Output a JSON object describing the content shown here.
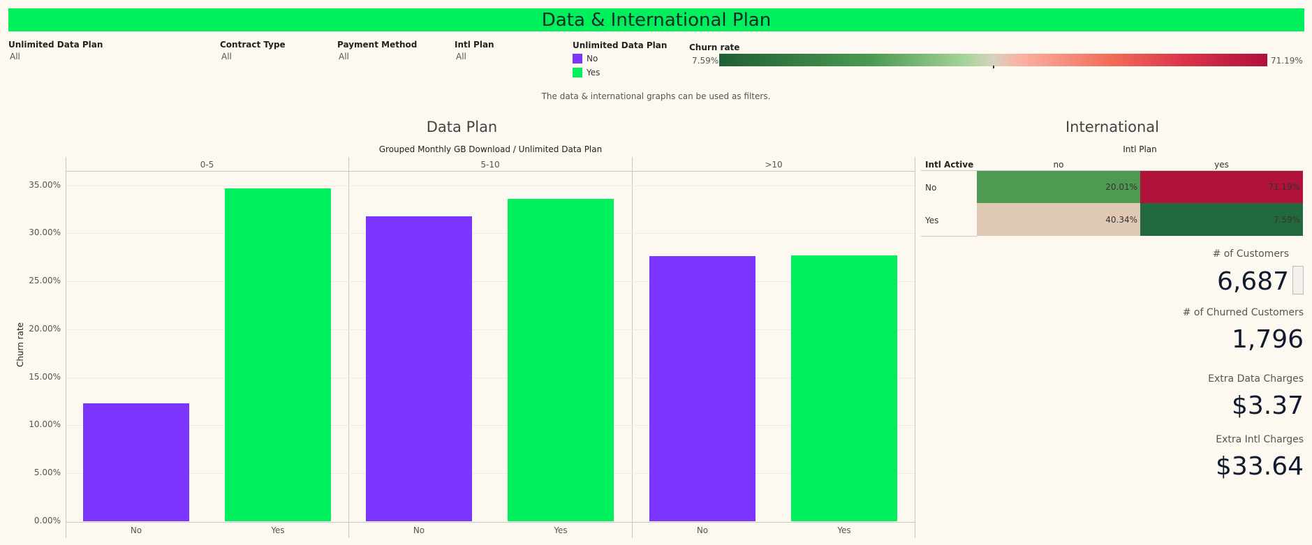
{
  "title": "Data & International Plan",
  "filters": [
    {
      "label": "Unlimited Data Plan",
      "value": "All"
    },
    {
      "label": "Contract Type",
      "value": "All"
    },
    {
      "label": "Payment Method",
      "value": "All"
    },
    {
      "label": "Intl Plan",
      "value": "All"
    }
  ],
  "legend": {
    "title": "Unlimited Data Plan",
    "items": [
      {
        "label": "No",
        "color": "#7b35ff"
      },
      {
        "label": "Yes",
        "color": "#00ef5c"
      }
    ]
  },
  "churn_scale": {
    "title": "Churn rate",
    "min_label": "7.59%",
    "max_label": "71.19%"
  },
  "note": "The data & international graphs can be used as filters.",
  "data_plan": {
    "title": "Data Plan",
    "header": "Grouped Monthly GB Download  /  Unlimited Data Plan",
    "ylabel": "Churn rate",
    "groups": [
      "0-5",
      "5-10",
      ">10"
    ],
    "yticks": [
      "35.00%",
      "30.00%",
      "25.00%",
      "20.00%",
      "15.00%",
      "10.00%",
      "5.00%",
      "0.00%"
    ]
  },
  "chart_data": {
    "type": "bar",
    "title": "Data Plan",
    "xlabel": "Grouped Monthly GB Download / Unlimited Data Plan",
    "ylabel": "Churn rate",
    "categories": [
      "0-5",
      "5-10",
      ">10"
    ],
    "series": [
      {
        "name": "No",
        "values": [
          12.3,
          31.8,
          27.6
        ]
      },
      {
        "name": "Yes",
        "values": [
          34.7,
          33.6,
          27.7
        ]
      }
    ],
    "ylim": [
      0,
      36.5
    ]
  },
  "international": {
    "title": "International",
    "header": "Intl Plan",
    "row_header": "Intl Active",
    "columns": [
      "no",
      "yes"
    ],
    "rows": [
      {
        "label": "No",
        "cells": [
          {
            "value": "20.01%",
            "color": "#4f9a52"
          },
          {
            "value": "71.19%",
            "color": "#b0123a"
          }
        ]
      },
      {
        "label": "Yes",
        "cells": [
          {
            "value": "40.34%",
            "color": "#dfc9b4"
          },
          {
            "value": "7.59%",
            "color": "#226a3e"
          }
        ]
      }
    ]
  },
  "kpis": [
    {
      "label": "# of Customers",
      "value": "6,687"
    },
    {
      "label": "# of Churned Customers",
      "value": "1,796"
    },
    {
      "label": "Extra Data Charges",
      "value": "$3.37"
    },
    {
      "label": "Extra Intl Charges",
      "value": "$33.64"
    }
  ]
}
